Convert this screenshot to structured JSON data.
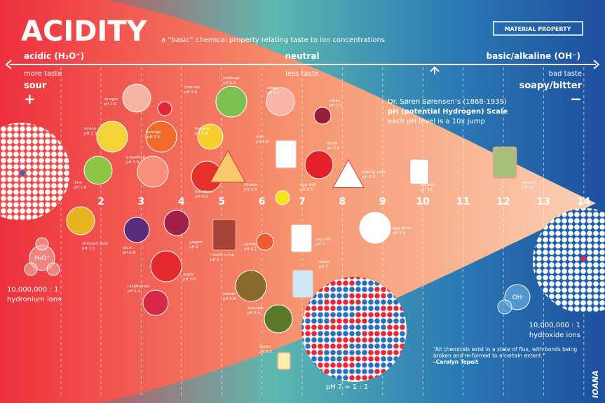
{
  "header": {
    "title": "ACIDITY",
    "subtitle": "a “basic” chemical property relating taste to ion concentrations",
    "badge": "MATERIAL PROPERTY"
  },
  "scale": {
    "acidic": "acidic (H₃O⁺)",
    "neutral": "neutral",
    "basic": "basic/alkaline (OH⁻)",
    "left_taste": "more taste",
    "left_flavor": "sour",
    "left_sign": "+",
    "center_taste": "less taste",
    "right_taste": "bad taste",
    "right_flavor": "soapy/bitter",
    "right_sign": "−",
    "ph_numbers": [
      "2",
      "3",
      "4",
      "5",
      "6",
      "7",
      "8",
      "9",
      "10",
      "11",
      "12",
      "13",
      "14"
    ]
  },
  "info": {
    "line1": "Dr. Søren Sørensen’s (1868-1939)",
    "line2": "pH (potential Hydrogen) Scale",
    "line3": "each pH level is a 10x jump"
  },
  "items": [
    {
      "name": "lemon",
      "ph": "pH 2.3"
    },
    {
      "name": "vinegar",
      "ph": "pH 2.8"
    },
    {
      "name": "cherries",
      "ph": "pH 3.6"
    },
    {
      "name": "orange",
      "ph": "pH 3.5"
    },
    {
      "name": "grapefruit",
      "ph": "pH 3.3"
    },
    {
      "name": "banana",
      "ph": "pH 4.8"
    },
    {
      "name": "cabbage",
      "ph": "pH 5.3"
    },
    {
      "name": "saliva",
      "ph": "pH 6.7"
    },
    {
      "name": "dates",
      "ph": "pH 7.5"
    },
    {
      "name": "milk",
      "ph": "pH 6.8"
    },
    {
      "name": "blood",
      "ph": "pH 7.4"
    },
    {
      "name": "tomatoes",
      "ph": "pH 4.0"
    },
    {
      "name": "cheese",
      "ph": "pH 5.6"
    },
    {
      "name": "egg yolk",
      "ph": "pH 6.3"
    },
    {
      "name": "baking soda",
      "ph": "pH 8.2"
    },
    {
      "name": "antacid",
      "ph": "pH 10"
    },
    {
      "name": "bleach",
      "ph": "pH 12"
    },
    {
      "name": "lime",
      "ph": "pH 1.8"
    },
    {
      "name": "stomach acid",
      "ph": "pH 1.5"
    },
    {
      "name": "plum",
      "ph": "pH 2.8"
    },
    {
      "name": "grapes",
      "ph": "pH 4"
    },
    {
      "name": "maple syrup",
      "ph": "pH 5"
    },
    {
      "name": "carrots",
      "ph": "pH 6.1"
    },
    {
      "name": "soy milk",
      "ph": "pH 7"
    },
    {
      "name": "water",
      "ph": "pH 7"
    },
    {
      "name": "egg white",
      "ph": "pH 8.9"
    },
    {
      "name": "apple",
      "ph": "pH 3.6"
    },
    {
      "name": "raspberries",
      "ph": "pH 3.4"
    },
    {
      "name": "potato",
      "ph": "pH 5.8"
    },
    {
      "name": "avocado",
      "ph": "pH 6.4"
    },
    {
      "name": "butter",
      "ph": "pH 6.5"
    }
  ],
  "ions": {
    "left_symbol": "H₃O⁺",
    "left_ratio": "10,000,000 : 1",
    "left_name": "hydronium ions",
    "right_symbol": "OH⁻",
    "right_ratio": "10,000,000 : 1",
    "right_name": "hydroxide ions",
    "neutral_ratio": "pH 7 = 1 : 1"
  },
  "quote": {
    "text": "“All chemicals exist in a state of flux, with bonds being broken and re-formed to a certain extent.”",
    "author": "–Carolyn Tepolt"
  },
  "credit": "IOANA"
}
